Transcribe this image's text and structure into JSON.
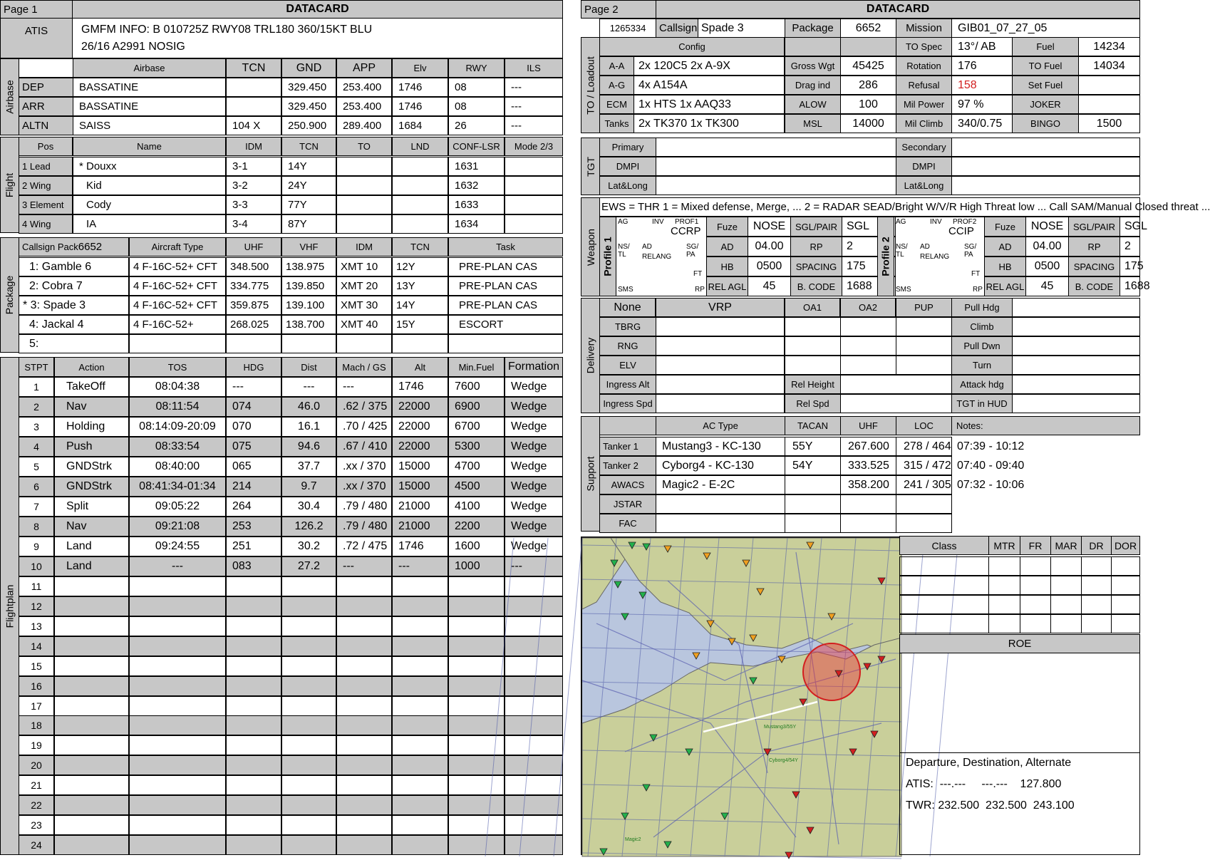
{
  "page1": {
    "page_label": "Page 1",
    "title": "DATACARD",
    "atis": {
      "label": "ATIS",
      "line1": "GMFM INFO: B 010725Z RWY08 TRL180 360/15KT BLU",
      "line2": "26/16 A2991  NOSIG"
    },
    "airbase": {
      "section_label": "Airbase",
      "headers": [
        "Airbase",
        "TCN",
        "GND",
        "APP",
        "Elv",
        "RWY",
        "ILS"
      ],
      "rows": [
        {
          "label": "DEP",
          "cells": [
            "BASSATINE",
            "",
            "329.450",
            "253.400",
            "1746",
            "08",
            "---"
          ]
        },
        {
          "label": "ARR",
          "cells": [
            "BASSATINE",
            "",
            "329.450",
            "253.400",
            "1746",
            "08",
            "---"
          ]
        },
        {
          "label": "ALTN",
          "cells": [
            "SAISS",
            "104 X",
            "250.900",
            "289.400",
            "1684",
            "26",
            "---"
          ]
        }
      ]
    },
    "flight": {
      "section_label": "Flight",
      "headers": [
        "Pos",
        "Name",
        "IDM",
        "TCN",
        "TO",
        "LND",
        "CONF-LSR",
        "Mode 2/3"
      ],
      "rows": [
        [
          "1 Lead",
          "* Douxx",
          "3-1",
          "14Y",
          "",
          "",
          "1631",
          ""
        ],
        [
          "2 Wing",
          "Kid",
          "3-2",
          "24Y",
          "",
          "",
          "1632",
          ""
        ],
        [
          "3 Element",
          "Cody",
          "3-3",
          "77Y",
          "",
          "",
          "1633",
          ""
        ],
        [
          "4 Wing",
          "IA",
          "3-4",
          "87Y",
          "",
          "",
          "1634",
          ""
        ]
      ]
    },
    "package": {
      "section_label": "Package",
      "callsign_header": "Callsign Pack",
      "pack_number": "6652",
      "headers": [
        "Aircraft Type",
        "UHF",
        "VHF",
        "IDM",
        "TCN",
        "Task"
      ],
      "rows": [
        [
          "1: Gamble 6",
          "4 F-16C-52+ CFT",
          "348.500",
          "138.975",
          "XMT 10",
          "12Y",
          "PRE-PLAN CAS"
        ],
        [
          "2: Cobra 7",
          "4 F-16C-52+ CFT",
          "334.775",
          "139.850",
          "XMT 20",
          "13Y",
          "PRE-PLAN CAS"
        ],
        [
          "* 3: Spade 3",
          "4 F-16C-52+ CFT",
          "359.875",
          "139.100",
          "XMT 30",
          "14Y",
          "PRE-PLAN CAS"
        ],
        [
          "4: Jackal 4",
          "4 F-16C-52+",
          "268.025",
          "138.700",
          "XMT 40",
          "15Y",
          "ESCORT"
        ],
        [
          "5:",
          "",
          "",
          "",
          "",
          "",
          ""
        ]
      ]
    },
    "flightplan": {
      "section_label": "Flightplan",
      "headers": [
        "STPT",
        "Action",
        "TOS",
        "HDG",
        "Dist",
        "Mach / GS",
        "Alt",
        "Min.Fuel",
        "Formation"
      ],
      "rows": [
        [
          "1",
          "TakeOff",
          "08:04:38",
          "---",
          "---",
          "---",
          "1746",
          "7600",
          "Wedge"
        ],
        [
          "2",
          "Nav",
          "08:11:54",
          "074",
          "46.0",
          ".62 / 375",
          "22000",
          "6900",
          "Wedge"
        ],
        [
          "3",
          "Holding",
          "08:14:09-20:09",
          "070",
          "16.1",
          ".70 / 425",
          "22000",
          "6700",
          "Wedge"
        ],
        [
          "4",
          "Push",
          "08:33:54",
          "075",
          "94.6",
          ".67 / 410",
          "22000",
          "5300",
          "Wedge"
        ],
        [
          "5",
          "GNDStrk",
          "08:40:00",
          "065",
          "37.7",
          ".xx / 370",
          "15000",
          "4700",
          "Wedge"
        ],
        [
          "6",
          "GNDStrk",
          "08:41:34-01:34",
          "214",
          "9.7",
          ".xx / 370",
          "15000",
          "4500",
          "Wedge"
        ],
        [
          "7",
          "Split",
          "09:05:22",
          "264",
          "30.4",
          ".79 / 480",
          "21000",
          "4100",
          "Wedge"
        ],
        [
          "8",
          "Nav",
          "09:21:08",
          "253",
          "126.2",
          ".79 / 480",
          "21000",
          "2200",
          "Wedge"
        ],
        [
          "9",
          "Land",
          "09:24:55",
          "251",
          "30.2",
          ".72 / 475",
          "1746",
          "1600",
          "Wedge"
        ],
        [
          "10",
          "Land",
          "---",
          "083",
          "27.2",
          "---",
          "---",
          "1000",
          "---"
        ],
        [
          "11",
          "",
          "",
          "",
          "",
          "",
          "",
          "",
          ""
        ],
        [
          "12",
          "",
          "",
          "",
          "",
          "",
          "",
          "",
          ""
        ],
        [
          "13",
          "",
          "",
          "",
          "",
          "",
          "",
          "",
          ""
        ],
        [
          "14",
          "",
          "",
          "",
          "",
          "",
          "",
          "",
          ""
        ],
        [
          "15",
          "",
          "",
          "",
          "",
          "",
          "",
          "",
          ""
        ],
        [
          "16",
          "",
          "",
          "",
          "",
          "",
          "",
          "",
          ""
        ],
        [
          "17",
          "",
          "",
          "",
          "",
          "",
          "",
          "",
          ""
        ],
        [
          "18",
          "",
          "",
          "",
          "",
          "",
          "",
          "",
          ""
        ],
        [
          "19",
          "",
          "",
          "",
          "",
          "",
          "",
          "",
          ""
        ],
        [
          "20",
          "",
          "",
          "",
          "",
          "",
          "",
          "",
          ""
        ],
        [
          "21",
          "",
          "",
          "",
          "",
          "",
          "",
          "",
          ""
        ],
        [
          "22",
          "",
          "",
          "",
          "",
          "",
          "",
          "",
          ""
        ],
        [
          "23",
          "",
          "",
          "",
          "",
          "",
          "",
          "",
          ""
        ],
        [
          "24",
          "",
          "",
          "",
          "",
          "",
          "",
          "",
          ""
        ]
      ]
    }
  },
  "page2": {
    "page_label": "Page 2",
    "title": "DATACARD",
    "top": {
      "id": "1265334",
      "callsign_label": "Callsign",
      "callsign": "Spade 3",
      "package_label": "Package",
      "package": "6652",
      "mission_label": "Mission",
      "mission": "GIB01_07_27_05"
    },
    "loadout": {
      "section_label": "TO / Loadout",
      "config_label": "Config",
      "to_spec_label": "TO Spec",
      "to_spec": "13°/ AB",
      "fuel_label": "Fuel",
      "fuel": "14234",
      "rows": [
        {
          "label": "A-A",
          "value": "2x 120C5 2x A-9X",
          "p_label": "Gross Wgt",
          "p_value": "45425",
          "q_label": "Rotation",
          "q_value": "176",
          "r_label": "TO Fuel",
          "r_value": "14034"
        },
        {
          "label": "A-G",
          "value": "4x A154A",
          "p_label": "Drag ind",
          "p_value": "286",
          "q_label": "Refusal",
          "q_value": "158",
          "r_label": "Set Fuel",
          "r_value": ""
        },
        {
          "label": "ECM",
          "value": "1x HTS 1x AAQ33",
          "p_label": "ALOW",
          "p_value": "100",
          "q_label": "Mil Power",
          "q_value": "97 %",
          "r_label": "JOKER",
          "r_value": ""
        },
        {
          "label": "Tanks",
          "value": "2x TK370 1x TK300",
          "p_label": "MSL",
          "p_value": "14000",
          "q_label": "Mil Climb",
          "q_value": "340/0.75",
          "r_label": "BINGO",
          "r_value": "1500"
        }
      ]
    },
    "tgt": {
      "section_label": "TGT",
      "rows": [
        {
          "left": "Primary",
          "right": "Secondary"
        },
        {
          "left": "DMPI",
          "right": "DMPI"
        },
        {
          "left": "Lat&Long",
          "right": "Lat&Long"
        }
      ]
    },
    "weapon": {
      "section_label": "Weapon",
      "ews": "EWS = THR  1 = Mixed defense, Merge, ...  2 = RADAR  SEAD/Bright W/V/R  High Threat  low ... Call SAM/Manual  Closed threat  ...",
      "profiles": [
        {
          "label": "Profile 1",
          "mode": "CCRP",
          "mfd": {
            "ag": "AG",
            "inv": "INV",
            "prof": "PROF1",
            "nstl": "NS/ TL",
            "ad": "AD",
            "relang": "RELANG",
            "sgpa": "SG/ PA",
            "ft": "FT",
            "sms": "SMS",
            "rp": "RP"
          },
          "fields": [
            [
              "Fuze",
              "NOSE",
              "SGL/PAIR",
              "SGL"
            ],
            [
              "AD",
              "04.00",
              "RP",
              "2"
            ],
            [
              "HB",
              "0500",
              "SPACING",
              "175"
            ],
            [
              "REL AGL",
              "45",
              "B. CODE",
              "1688"
            ]
          ]
        },
        {
          "label": "Profile 2",
          "mode": "CCIP",
          "mfd": {
            "ag": "AG",
            "inv": "INV",
            "prof": "PROF2",
            "nstl": "NS/ TL",
            "ad": "AD",
            "relang": "RELANG",
            "sgpa": "SG/ PA",
            "ft": "FT",
            "sms": "SMS",
            "rp": "RP"
          },
          "fields": [
            [
              "Fuze",
              "NOSE",
              "SGL/PAIR",
              "SGL"
            ],
            [
              "AD",
              "04.00",
              "RP",
              "2"
            ],
            [
              "HB",
              "0500",
              "SPACING",
              "175"
            ],
            [
              "REL AGL",
              "45",
              "B. CODE",
              "1688"
            ]
          ]
        }
      ]
    },
    "delivery": {
      "section_label": "Delivery",
      "headers": [
        "None",
        "VRP",
        "OA1",
        "OA2",
        "PUP"
      ],
      "rows": [
        "TBRG",
        "RNG",
        "ELV"
      ],
      "right_labels": [
        "Pull Hdg",
        "Climb",
        "Pull Dwn",
        "Turn"
      ],
      "ingress_alt": "Ingress Alt",
      "ingress_spd": "Ingress Spd",
      "rel_height": "Rel Height",
      "rel_spd": "Rel Spd",
      "attack_hdg": "Attack hdg",
      "tgt_hud": "TGT in HUD"
    },
    "support": {
      "section_label": "Support",
      "headers": [
        "AC Type",
        "TACAN",
        "UHF",
        "LOC",
        "Notes:"
      ],
      "rows": [
        [
          "Tanker 1",
          "Mustang3 - KC-130",
          "55Y",
          "267.600",
          "278 / 464",
          "07:39 - 10:12"
        ],
        [
          "Tanker 2",
          "Cyborg4 - KC-130",
          "54Y",
          "333.525",
          "315 / 472",
          "07:40 - 09:40"
        ],
        [
          "AWACS",
          "Magic2 - E-2C",
          "",
          "358.200",
          "241 / 305",
          "07:32 - 10:06"
        ],
        [
          "JSTAR",
          "",
          "",
          "",
          "",
          ""
        ],
        [
          "FAC",
          "",
          "",
          "",
          "",
          ""
        ]
      ]
    },
    "threats": {
      "headers": [
        "Class",
        "MTR",
        "FR",
        "MAR",
        "DR",
        "DOR"
      ],
      "rows": 4
    },
    "roe": {
      "label": "ROE"
    },
    "comms": {
      "title": "Departure, Destination, Alternate",
      "atis": "ATIS:  ---.---     ---.---    127.800",
      "twr": "TWR: 232.500  232.500  243.100"
    },
    "map": {
      "labels": [
        "Mustang3/55Y",
        "Cyborg4/54Y",
        "Magic2"
      ],
      "colors": {
        "sea": "#b9c6de",
        "land": "#c9cf9a",
        "grid": "#4e5aa8",
        "threat": "#e8333c"
      }
    }
  }
}
